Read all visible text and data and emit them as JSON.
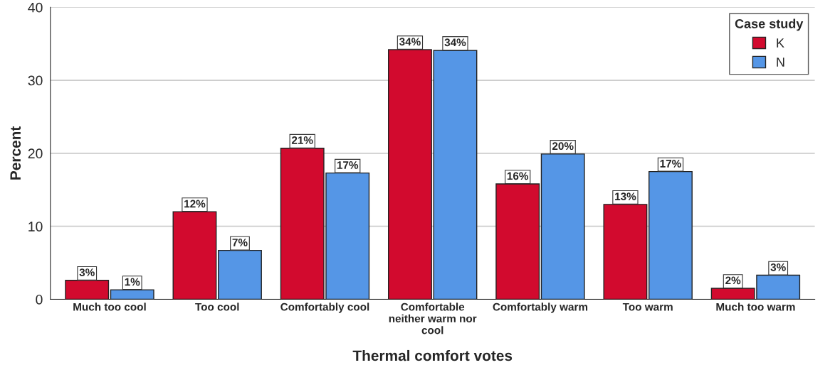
{
  "chart_data": {
    "type": "bar",
    "xlabel": "Thermal comfort votes",
    "ylabel": "Percent",
    "legend_title": "Case study",
    "legend": "top right",
    "grid": "y",
    "categories": [
      "Much too cool",
      "Too cool",
      "Comfortably cool",
      "Comfortable\nneither warm nor\ncool",
      "Comfortably warm",
      "Too warm",
      "Much too warm"
    ],
    "series": [
      {
        "name": "K",
        "color": "#d20a2e",
        "values": [
          2.6,
          12.0,
          20.7,
          34.2,
          15.8,
          13.0,
          1.5
        ],
        "value_labels": [
          "3%",
          "12%",
          "21%",
          "34%",
          "16%",
          "13%",
          "2%"
        ]
      },
      {
        "name": "N",
        "color": "#5596e6",
        "values": [
          1.3,
          6.7,
          17.3,
          34.1,
          19.9,
          17.5,
          3.3
        ],
        "value_labels": [
          "1%",
          "7%",
          "17%",
          "34%",
          "20%",
          "17%",
          "3%"
        ]
      }
    ],
    "ylim": [
      0,
      40
    ],
    "yticks": [
      0,
      10,
      20,
      30,
      40
    ]
  }
}
